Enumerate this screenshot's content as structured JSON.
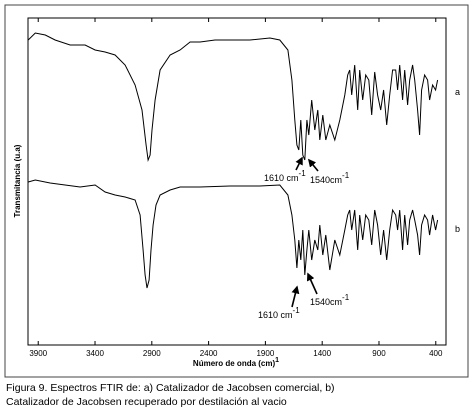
{
  "chart_data": {
    "type": "line",
    "y_label": "Transmitancia (u.a)",
    "x_label": "Número de onda (cm)",
    "x_label_sup": "1",
    "xlim": [
      3990,
      310
    ],
    "ylim": [
      0,
      327
    ],
    "xticks": [
      3900,
      3400,
      2900,
      2400,
      1900,
      1400,
      900,
      400
    ],
    "series": [
      {
        "name": "a",
        "color": "#000000",
        "x": [
          3988,
          3926,
          3838,
          3751,
          3619,
          3487,
          3399,
          3311,
          3223,
          3135,
          3047,
          2986,
          2950,
          2933,
          2915,
          2898,
          2871,
          2827,
          2739,
          2651,
          2563,
          2475,
          2344,
          2212,
          2036,
          1860,
          1773,
          1702,
          1667,
          1641,
          1623,
          1606,
          1588,
          1571,
          1553,
          1535,
          1518,
          1492,
          1465,
          1439,
          1421,
          1395,
          1368,
          1333,
          1289,
          1245,
          1201,
          1175,
          1158,
          1140,
          1114,
          1087,
          1070,
          1043,
          1017,
          990,
          964,
          938,
          912,
          885,
          859,
          832,
          806,
          780,
          753,
          736,
          718,
          692,
          674,
          648,
          630,
          604,
          586,
          560,
          542,
          525,
          498,
          472,
          454,
          428,
          402,
          384
        ],
        "values": [
          305,
          312,
          310,
          305,
          300,
          300,
          295,
          293,
          290,
          280,
          260,
          235,
          200,
          185,
          190,
          215,
          245,
          275,
          290,
          295,
          303,
          303,
          305,
          305,
          305,
          307,
          305,
          295,
          265,
          225,
          200,
          195,
          225,
          190,
          185,
          225,
          210,
          245,
          215,
          235,
          205,
          230,
          205,
          220,
          205,
          225,
          250,
          270,
          275,
          250,
          280,
          235,
          275,
          245,
          270,
          265,
          230,
          273,
          250,
          235,
          255,
          220,
          250,
          275,
          275,
          255,
          280,
          245,
          275,
          240,
          265,
          280,
          265,
          235,
          210,
          255,
          270,
          265,
          245,
          260,
          255,
          265
        ]
      },
      {
        "name": "b",
        "color": "#000000",
        "x": [
          3988,
          3926,
          3795,
          3663,
          3531,
          3399,
          3311,
          3223,
          3135,
          3047,
          3003,
          2977,
          2959,
          2942,
          2924,
          2907,
          2889,
          2863,
          2827,
          2739,
          2651,
          2475,
          2212,
          1949,
          1773,
          1702,
          1667,
          1641,
          1623,
          1606,
          1588,
          1571,
          1553,
          1535,
          1518,
          1492,
          1465,
          1439,
          1421,
          1395,
          1368,
          1333,
          1289,
          1245,
          1201,
          1175,
          1158,
          1140,
          1114,
          1087,
          1070,
          1043,
          1017,
          990,
          964,
          938,
          912,
          885,
          859,
          832,
          806,
          780,
          753,
          736,
          718,
          692,
          674,
          648,
          630,
          604,
          586,
          560,
          542,
          525,
          498,
          472,
          454,
          428,
          402,
          384
        ],
        "values": [
          163,
          165,
          162,
          160,
          158,
          160,
          153,
          150,
          148,
          145,
          130,
          95,
          70,
          57,
          65,
          95,
          120,
          140,
          150,
          155,
          158,
          158,
          159,
          159,
          160,
          150,
          130,
          105,
          77,
          105,
          85,
          115,
          70,
          95,
          115,
          85,
          105,
          95,
          120,
          90,
          110,
          75,
          105,
          90,
          115,
          130,
          135,
          115,
          135,
          95,
          130,
          105,
          130,
          125,
          100,
          135,
          120,
          90,
          115,
          85,
          115,
          135,
          130,
          115,
          135,
          95,
          130,
          100,
          125,
          135,
          125,
          110,
          90,
          120,
          130,
          125,
          110,
          130,
          115,
          125
        ]
      }
    ],
    "annotations": [
      {
        "text": "1610 cm",
        "sup": "-1"
      },
      {
        "text": "1540cm",
        "sup": "-1"
      },
      {
        "text": "1610 cm",
        "sup": "-1"
      },
      {
        "text": "1540cm",
        "sup": "-1"
      }
    ],
    "caption": [
      "Figura 9. Espectros FTIR de: a) Catalizador de Jacobsen comercial, b)",
      "Catalizador de Jacobsen recuperado por destilación al vacio"
    ]
  }
}
